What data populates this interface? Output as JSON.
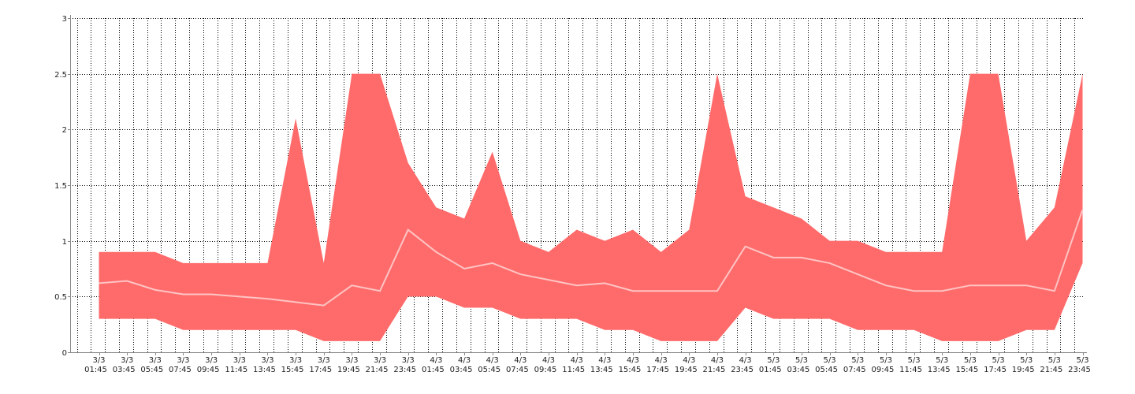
{
  "chart_data": {
    "type": "area",
    "title": "",
    "xlabel": "",
    "ylabel": "",
    "ylim": [
      0,
      3
    ],
    "yticks": [
      "0",
      "0.5",
      "1",
      "1.5",
      "2",
      "2.5",
      "3"
    ],
    "grid": true,
    "legend": "none",
    "colors": {
      "band": "#ff6b6b",
      "mean": "#ffc4c4",
      "grid": "#000000",
      "axis": "#888888"
    },
    "xticks": [
      {
        "date": "3/3",
        "time": "01:45"
      },
      {
        "date": "3/3",
        "time": "03:45"
      },
      {
        "date": "3/3",
        "time": "05:45"
      },
      {
        "date": "3/3",
        "time": "07:45"
      },
      {
        "date": "3/3",
        "time": "09:45"
      },
      {
        "date": "3/3",
        "time": "11:45"
      },
      {
        "date": "3/3",
        "time": "13:45"
      },
      {
        "date": "3/3",
        "time": "15:45"
      },
      {
        "date": "3/3",
        "time": "17:45"
      },
      {
        "date": "3/3",
        "time": "19:45"
      },
      {
        "date": "3/3",
        "time": "21:45"
      },
      {
        "date": "3/3",
        "time": "23:45"
      },
      {
        "date": "4/3",
        "time": "01:45"
      },
      {
        "date": "4/3",
        "time": "03:45"
      },
      {
        "date": "4/3",
        "time": "05:45"
      },
      {
        "date": "4/3",
        "time": "07:45"
      },
      {
        "date": "4/3",
        "time": "09:45"
      },
      {
        "date": "4/3",
        "time": "11:45"
      },
      {
        "date": "4/3",
        "time": "13:45"
      },
      {
        "date": "4/3",
        "time": "15:45"
      },
      {
        "date": "4/3",
        "time": "17:45"
      },
      {
        "date": "4/3",
        "time": "19:45"
      },
      {
        "date": "4/3",
        "time": "21:45"
      },
      {
        "date": "4/3",
        "time": "23:45"
      },
      {
        "date": "5/3",
        "time": "01:45"
      },
      {
        "date": "5/3",
        "time": "03:45"
      },
      {
        "date": "5/3",
        "time": "05:45"
      },
      {
        "date": "5/3",
        "time": "07:45"
      },
      {
        "date": "5/3",
        "time": "09:45"
      },
      {
        "date": "5/3",
        "time": "11:45"
      },
      {
        "date": "5/3",
        "time": "13:45"
      },
      {
        "date": "5/3",
        "time": "15:45"
      },
      {
        "date": "5/3",
        "time": "17:45"
      },
      {
        "date": "5/3",
        "time": "19:45"
      },
      {
        "date": "5/3",
        "time": "21:45"
      },
      {
        "date": "5/3",
        "time": "23:45"
      }
    ],
    "x": [
      0,
      1,
      2,
      3,
      4,
      5,
      6,
      7,
      8,
      9,
      10,
      11,
      12,
      13,
      14,
      15,
      16,
      17,
      18,
      19,
      20,
      21,
      22,
      23,
      24,
      25,
      26,
      27,
      28,
      29,
      30,
      31,
      32,
      33,
      34,
      35
    ],
    "series": [
      {
        "role": "max",
        "values": [
          0.9,
          0.9,
          0.9,
          0.8,
          0.8,
          0.8,
          0.8,
          2.1,
          0.8,
          2.5,
          2.5,
          1.7,
          1.3,
          1.2,
          1.8,
          1.0,
          0.9,
          1.1,
          1.0,
          1.1,
          0.9,
          1.1,
          2.5,
          1.4,
          1.3,
          1.2,
          1.0,
          1.0,
          0.9,
          0.9,
          0.9,
          2.5,
          2.5,
          1.0,
          1.3,
          2.5
        ]
      },
      {
        "role": "mean",
        "values": [
          0.62,
          0.64,
          0.56,
          0.52,
          0.52,
          0.5,
          0.48,
          0.45,
          0.42,
          0.6,
          0.55,
          1.1,
          0.9,
          0.75,
          0.8,
          0.7,
          0.65,
          0.6,
          0.62,
          0.55,
          0.55,
          0.55,
          0.55,
          0.95,
          0.85,
          0.85,
          0.8,
          0.7,
          0.6,
          0.55,
          0.55,
          0.6,
          0.6,
          0.6,
          0.55,
          1.28
        ]
      },
      {
        "role": "min",
        "values": [
          0.3,
          0.3,
          0.3,
          0.2,
          0.2,
          0.2,
          0.2,
          0.2,
          0.1,
          0.1,
          0.1,
          0.5,
          0.5,
          0.4,
          0.4,
          0.3,
          0.3,
          0.3,
          0.2,
          0.2,
          0.1,
          0.1,
          0.1,
          0.4,
          0.3,
          0.3,
          0.3,
          0.2,
          0.2,
          0.2,
          0.1,
          0.1,
          0.1,
          0.2,
          0.2,
          0.8
        ]
      }
    ]
  }
}
